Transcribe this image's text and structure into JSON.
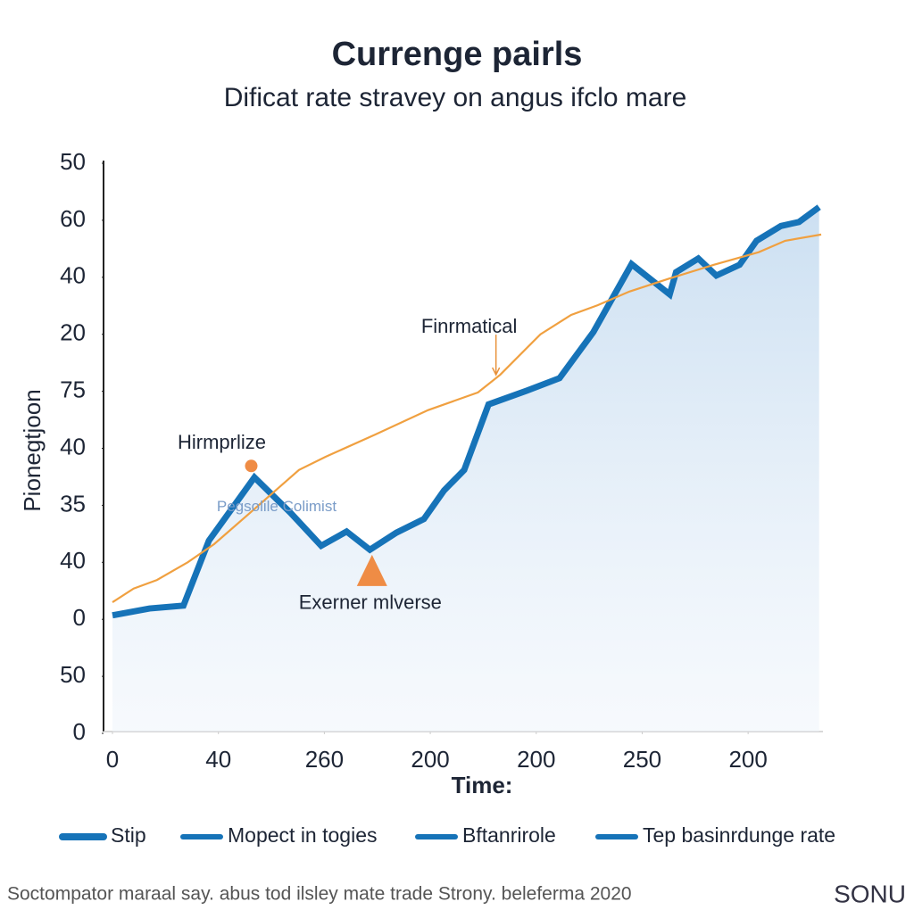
{
  "chart_data": {
    "type": "line",
    "title": "Currenge pairls",
    "subtitle": "Dificat rate stravey on angus ifclo mare",
    "y_label": "Pionegtjoon",
    "x_label": "Time:",
    "xlim": [
      -0.07,
      6.72
    ],
    "ylim": [
      0,
      10
    ],
    "xticks": [
      {
        "value": 0,
        "label": "0"
      },
      {
        "value": 1,
        "label": "40"
      },
      {
        "value": 2,
        "label": "260"
      },
      {
        "value": 3,
        "label": "200"
      },
      {
        "value": 4,
        "label": "200"
      },
      {
        "value": 5,
        "label": "250"
      },
      {
        "value": 6,
        "label": "200"
      }
    ],
    "yticks": [
      {
        "value": 0,
        "label": "0"
      },
      {
        "value": 1,
        "label": "50"
      },
      {
        "value": 2,
        "label": "0"
      },
      {
        "value": 3,
        "label": "40"
      },
      {
        "value": 4,
        "label": "35"
      },
      {
        "value": 5,
        "label": "40"
      },
      {
        "value": 6,
        "label": "75"
      },
      {
        "value": 7,
        "label": "20"
      },
      {
        "value": 8,
        "label": "40"
      },
      {
        "value": 9,
        "label": "60"
      },
      {
        "value": 10,
        "label": "50"
      }
    ],
    "series": [
      {
        "color": "#1673b8",
        "area": true,
        "x": [
          0,
          0.35,
          0.67,
          0.91,
          1.34,
          1.68,
          1.97,
          2.21,
          2.43,
          2.68,
          2.94,
          3.13,
          3.32,
          3.55,
          3.91,
          4.22,
          4.54,
          4.9,
          5.26,
          5.32,
          5.53,
          5.7,
          5.92,
          6.08,
          6.31,
          6.48,
          6.67
        ],
        "values": [
          2.07,
          2.19,
          2.24,
          3.38,
          4.49,
          3.87,
          3.29,
          3.54,
          3.22,
          3.52,
          3.76,
          4.26,
          4.62,
          5.77,
          6.01,
          6.23,
          7.04,
          8.23,
          7.7,
          8.09,
          8.33,
          8.03,
          8.22,
          8.64,
          8.9,
          8.97,
          9.23
        ]
      },
      {
        "color": "#f0a040",
        "x": [
          0,
          0.2,
          0.42,
          0.71,
          0.96,
          1.3,
          1.76,
          2.01,
          2.48,
          2.98,
          3.45,
          3.66,
          4.04,
          4.33,
          4.58,
          4.88,
          5.26,
          5.68,
          6.1,
          6.35,
          6.69
        ],
        "values": [
          2.3,
          2.54,
          2.69,
          3.0,
          3.32,
          3.87,
          4.62,
          4.85,
          5.24,
          5.67,
          5.98,
          6.29,
          7.0,
          7.34,
          7.51,
          7.75,
          7.98,
          8.22,
          8.44,
          8.64,
          8.75
        ]
      }
    ],
    "annotations": [
      {
        "text": "Finrmatical",
        "marker": "arrow",
        "x": 3.62,
        "y": 6.29
      },
      {
        "text": "Hirmprlize",
        "marker": "dot",
        "x": 1.31,
        "y": 4.69
      },
      {
        "text": "Exerner mlverse",
        "marker": "triangle",
        "x": 2.45,
        "y": 2.85
      },
      {
        "text": "Pegsolile Colimist",
        "marker": "none",
        "x": 1.55,
        "y": 3.97
      }
    ],
    "legend": [
      "Stip",
      "Mopect in togies",
      "Bftanrirole",
      "Tep basinrdunge rate"
    ],
    "legend_color": "#1673b8",
    "footer": "Soctompator maraal say. abus tod ilsley mate trade Strony. beleferma 2020",
    "logo": "SONU"
  }
}
